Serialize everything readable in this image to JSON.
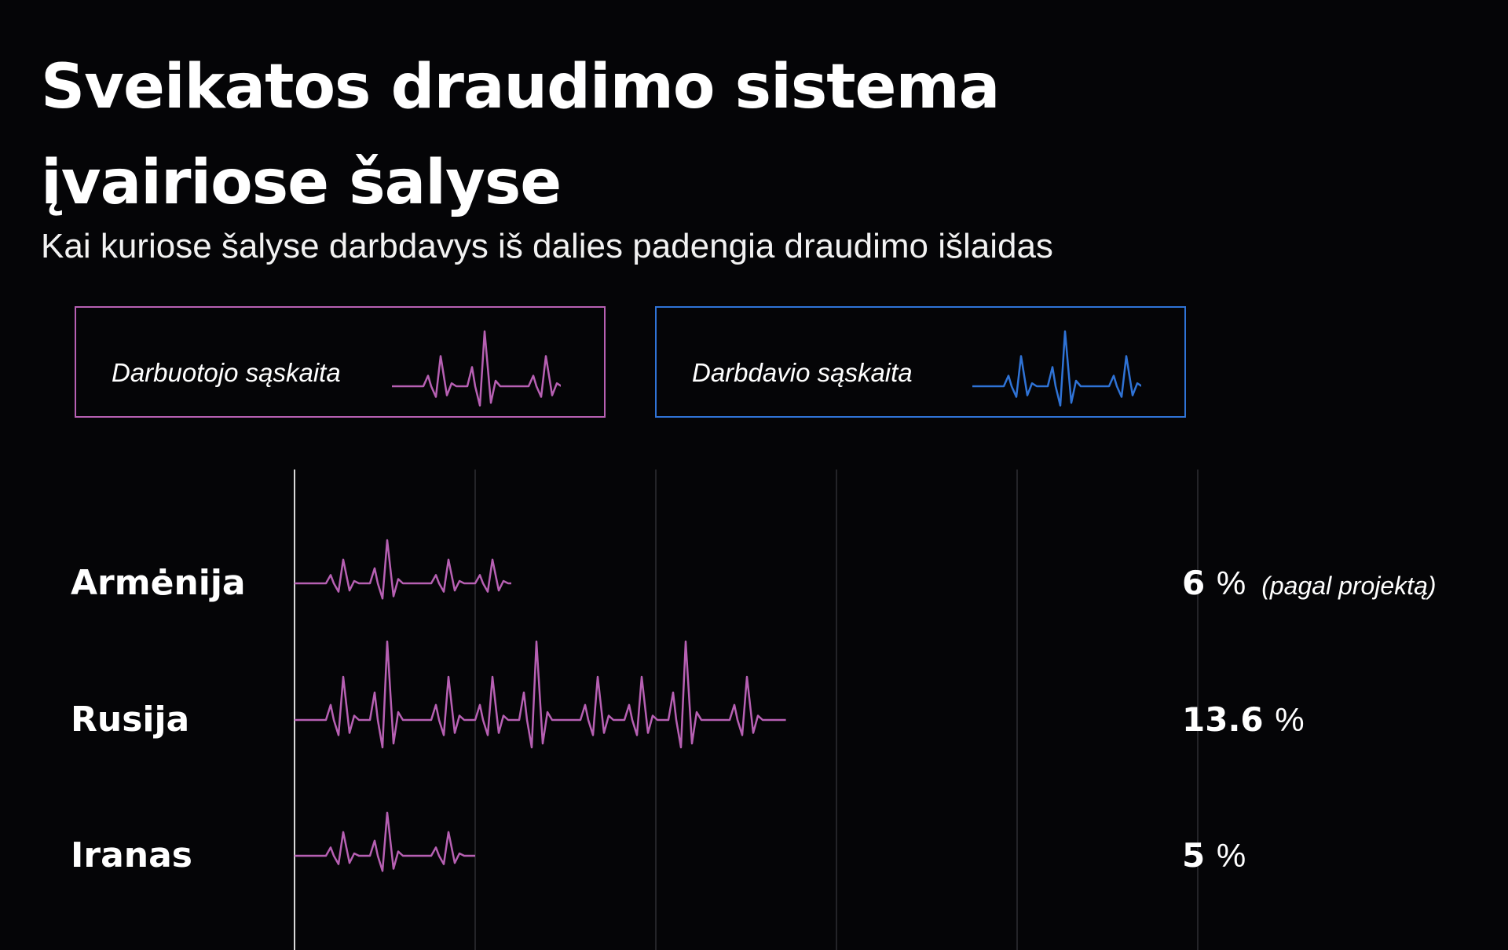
{
  "title_line1": "Sveikatos draudimo sistema",
  "title_line2": "įvairiose šalyse",
  "subtitle": "Kai kuriose šalyse darbdavys iš dalies padengia draudimo išlaidas",
  "legend": {
    "employee": {
      "label": "Darbuotojo sąskaita",
      "color": "#b760b3"
    },
    "employer": {
      "label": "Darbdavio sąskaita",
      "color": "#2f73d6"
    }
  },
  "chart_data": {
    "type": "bar",
    "title": "Sveikatos draudimo sistema įvairiose šalyse",
    "subtitle": "Kai kuriose šalyse darbdavys iš dalies padengia draudimo išlaidas",
    "xlim": [
      0,
      25
    ],
    "grid": true,
    "legend_placement": "top",
    "categories": [
      "Armėnija",
      "Rusija",
      "Iranas"
    ],
    "series": [
      {
        "name": "Darbuotojo sąskaita",
        "color": "#b760b3",
        "values": [
          6,
          13.6,
          5
        ]
      }
    ],
    "data_labels": [
      {
        "value": "6",
        "unit": "%",
        "note": "(pagal projektą)"
      },
      {
        "value": "13.6",
        "unit": "%",
        "note": ""
      },
      {
        "value": "5",
        "unit": "%",
        "note": ""
      }
    ]
  }
}
